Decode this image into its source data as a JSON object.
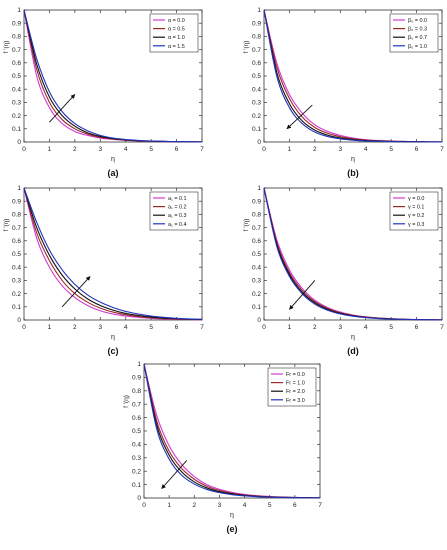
{
  "colors": {
    "magenta": "#d23bd2",
    "brown": "#9a2a2a",
    "black": "#111111",
    "blue": "#2233bb",
    "axis": "#333333"
  },
  "chart_data": [
    {
      "type": "line",
      "panel_label": "(a)",
      "ylabel": "f '(η)",
      "xlabel": "η",
      "xlim": [
        0,
        7
      ],
      "ylim": [
        0,
        1
      ],
      "xticks": [
        0,
        1,
        2,
        3,
        4,
        5,
        6,
        7
      ],
      "yticks": [
        0,
        0.1,
        0.2,
        0.3,
        0.4,
        0.5,
        0.6,
        0.7,
        0.8,
        0.9,
        1
      ],
      "legend_position": "top-right",
      "arrow_direction": "up",
      "arrow": {
        "from": [
          1.0,
          0.15
        ],
        "to": [
          2.0,
          0.36
        ]
      },
      "x": [
        0,
        0.5,
        1,
        1.5,
        2,
        2.5,
        3,
        3.5,
        4,
        4.5,
        5,
        5.5,
        6,
        6.5,
        7
      ],
      "series": [
        {
          "name": "α = 0.0",
          "color": "magenta",
          "values": [
            1,
            0.5,
            0.26,
            0.14,
            0.08,
            0.05,
            0.03,
            0.02,
            0.012,
            0.008,
            0.005,
            0.003,
            0.002,
            0.001,
            0.001
          ]
        },
        {
          "name": "α = 0.5",
          "color": "brown",
          "values": [
            1,
            0.55,
            0.3,
            0.17,
            0.1,
            0.06,
            0.035,
            0.022,
            0.014,
            0.009,
            0.006,
            0.004,
            0.002,
            0.001,
            0.001
          ]
        },
        {
          "name": "α = 1.0",
          "color": "black",
          "values": [
            1,
            0.59,
            0.34,
            0.2,
            0.12,
            0.07,
            0.042,
            0.026,
            0.016,
            0.01,
            0.007,
            0.004,
            0.003,
            0.002,
            0.001
          ]
        },
        {
          "name": "α = 1.5",
          "color": "blue",
          "values": [
            1,
            0.63,
            0.38,
            0.23,
            0.14,
            0.085,
            0.05,
            0.03,
            0.019,
            0.012,
            0.008,
            0.005,
            0.003,
            0.002,
            0.001
          ]
        }
      ]
    },
    {
      "type": "line",
      "panel_label": "(b)",
      "ylabel": "f '(η)",
      "xlabel": "η",
      "xlim": [
        0,
        7
      ],
      "ylim": [
        0,
        1
      ],
      "xticks": [
        0,
        1,
        2,
        3,
        4,
        5,
        6,
        7
      ],
      "yticks": [
        0,
        0.1,
        0.2,
        0.3,
        0.4,
        0.5,
        0.6,
        0.7,
        0.8,
        0.9,
        1
      ],
      "legend_position": "top-right",
      "arrow_direction": "down",
      "arrow": {
        "from": [
          1.9,
          0.28
        ],
        "to": [
          0.9,
          0.1
        ]
      },
      "x": [
        0,
        0.5,
        1,
        1.5,
        2,
        2.5,
        3,
        3.5,
        4,
        4.5,
        5,
        5.5,
        6,
        6.5,
        7
      ],
      "series": [
        {
          "name": "β₀ = 0.0",
          "color": "magenta",
          "values": [
            1,
            0.6,
            0.36,
            0.22,
            0.13,
            0.08,
            0.05,
            0.03,
            0.018,
            0.011,
            0.007,
            0.004,
            0.003,
            0.002,
            0.001
          ]
        },
        {
          "name": "β₀ = 0.3",
          "color": "brown",
          "values": [
            1,
            0.57,
            0.33,
            0.19,
            0.11,
            0.066,
            0.04,
            0.024,
            0.015,
            0.009,
            0.006,
            0.004,
            0.002,
            0.001,
            0.001
          ]
        },
        {
          "name": "β₀ = 0.7",
          "color": "black",
          "values": [
            1,
            0.53,
            0.29,
            0.16,
            0.09,
            0.052,
            0.03,
            0.018,
            0.011,
            0.007,
            0.004,
            0.003,
            0.002,
            0.001,
            0.001
          ]
        },
        {
          "name": "β₀ = 1.0",
          "color": "blue",
          "values": [
            1,
            0.5,
            0.26,
            0.14,
            0.075,
            0.042,
            0.024,
            0.014,
            0.008,
            0.005,
            0.003,
            0.002,
            0.001,
            0.001,
            0.0
          ]
        }
      ]
    },
    {
      "type": "line",
      "panel_label": "(c)",
      "ylabel": "f '(η)",
      "xlabel": "η",
      "xlim": [
        0,
        7
      ],
      "ylim": [
        0,
        1
      ],
      "xticks": [
        0,
        1,
        2,
        3,
        4,
        5,
        6,
        7
      ],
      "yticks": [
        0,
        0.1,
        0.2,
        0.3,
        0.4,
        0.5,
        0.6,
        0.7,
        0.8,
        0.9,
        1
      ],
      "legend_position": "top-right",
      "arrow_direction": "up",
      "arrow": {
        "from": [
          1.5,
          0.1
        ],
        "to": [
          2.6,
          0.33
        ]
      },
      "x": [
        0,
        0.5,
        1,
        1.5,
        2,
        2.5,
        3,
        3.5,
        4,
        4.5,
        5,
        5.5,
        6,
        6.5,
        7
      ],
      "series": [
        {
          "name": "a₁ = 0.1",
          "color": "magenta",
          "values": [
            1,
            0.62,
            0.4,
            0.26,
            0.17,
            0.11,
            0.07,
            0.045,
            0.03,
            0.02,
            0.013,
            0.008,
            0.005,
            0.003,
            0.002
          ]
        },
        {
          "name": "a₁ = 0.2",
          "color": "brown",
          "values": [
            1,
            0.66,
            0.45,
            0.3,
            0.2,
            0.135,
            0.09,
            0.06,
            0.04,
            0.026,
            0.017,
            0.011,
            0.007,
            0.005,
            0.003
          ]
        },
        {
          "name": "a₁ = 0.3",
          "color": "black",
          "values": [
            1,
            0.7,
            0.49,
            0.34,
            0.235,
            0.16,
            0.11,
            0.075,
            0.05,
            0.034,
            0.022,
            0.015,
            0.01,
            0.006,
            0.004
          ]
        },
        {
          "name": "a₁ = 0.4",
          "color": "blue",
          "values": [
            1,
            0.74,
            0.53,
            0.38,
            0.27,
            0.19,
            0.135,
            0.095,
            0.065,
            0.045,
            0.03,
            0.02,
            0.013,
            0.008,
            0.005
          ]
        }
      ]
    },
    {
      "type": "line",
      "panel_label": "(d)",
      "ylabel": "f '(η)",
      "xlabel": "η",
      "xlim": [
        0,
        7
      ],
      "ylim": [
        0,
        1
      ],
      "xticks": [
        0,
        1,
        2,
        3,
        4,
        5,
        6,
        7
      ],
      "yticks": [
        0,
        0.1,
        0.2,
        0.3,
        0.4,
        0.5,
        0.6,
        0.7,
        0.8,
        0.9,
        1
      ],
      "legend_position": "top-right",
      "arrow_direction": "down",
      "arrow": {
        "from": [
          2.0,
          0.3
        ],
        "to": [
          1.0,
          0.08
        ]
      },
      "x": [
        0,
        0.5,
        1,
        1.5,
        2,
        2.5,
        3,
        3.5,
        4,
        4.5,
        5,
        5.5,
        6,
        6.5,
        7
      ],
      "series": [
        {
          "name": "γ = 0.0",
          "color": "magenta",
          "values": [
            1,
            0.61,
            0.38,
            0.24,
            0.15,
            0.095,
            0.06,
            0.038,
            0.024,
            0.015,
            0.01,
            0.006,
            0.004,
            0.002,
            0.001
          ]
        },
        {
          "name": "γ = 0.1",
          "color": "brown",
          "values": [
            1,
            0.59,
            0.36,
            0.225,
            0.14,
            0.088,
            0.055,
            0.035,
            0.022,
            0.014,
            0.009,
            0.005,
            0.003,
            0.002,
            0.001
          ]
        },
        {
          "name": "γ = 0.2",
          "color": "black",
          "values": [
            1,
            0.575,
            0.345,
            0.21,
            0.13,
            0.08,
            0.05,
            0.032,
            0.02,
            0.013,
            0.008,
            0.005,
            0.003,
            0.002,
            0.001
          ]
        },
        {
          "name": "γ = 0.3",
          "color": "blue",
          "values": [
            1,
            0.56,
            0.33,
            0.2,
            0.12,
            0.074,
            0.046,
            0.029,
            0.018,
            0.011,
            0.007,
            0.004,
            0.003,
            0.002,
            0.001
          ]
        }
      ]
    },
    {
      "type": "line",
      "panel_label": "(e)",
      "ylabel": "f '(η)",
      "xlabel": "η",
      "xlim": [
        0,
        7
      ],
      "ylim": [
        0,
        1
      ],
      "xticks": [
        0,
        1,
        2,
        3,
        4,
        5,
        6,
        7
      ],
      "yticks": [
        0,
        0.1,
        0.2,
        0.3,
        0.4,
        0.5,
        0.6,
        0.7,
        0.8,
        0.9,
        1
      ],
      "legend_position": "top-right",
      "arrow_direction": "down",
      "arrow": {
        "from": [
          1.7,
          0.28
        ],
        "to": [
          0.7,
          0.07
        ]
      },
      "x": [
        0,
        0.5,
        1,
        1.5,
        2,
        2.5,
        3,
        3.5,
        4,
        4.5,
        5,
        5.5,
        6,
        6.5,
        7
      ],
      "series": [
        {
          "name": "Fr = 0.0",
          "color": "magenta",
          "values": [
            1,
            0.62,
            0.39,
            0.25,
            0.16,
            0.1,
            0.065,
            0.042,
            0.027,
            0.017,
            0.011,
            0.007,
            0.004,
            0.003,
            0.002
          ]
        },
        {
          "name": "Fr = 1.0",
          "color": "brown",
          "values": [
            1,
            0.58,
            0.35,
            0.22,
            0.14,
            0.088,
            0.056,
            0.036,
            0.023,
            0.015,
            0.009,
            0.006,
            0.004,
            0.002,
            0.001
          ]
        },
        {
          "name": "Fr = 2.0",
          "color": "black",
          "values": [
            1,
            0.55,
            0.32,
            0.195,
            0.12,
            0.075,
            0.047,
            0.03,
            0.019,
            0.012,
            0.008,
            0.005,
            0.003,
            0.002,
            0.001
          ]
        },
        {
          "name": "Fr = 3.0",
          "color": "blue",
          "values": [
            1,
            0.52,
            0.29,
            0.17,
            0.104,
            0.064,
            0.04,
            0.025,
            0.016,
            0.01,
            0.006,
            0.004,
            0.002,
            0.001,
            0.001
          ]
        }
      ]
    }
  ]
}
